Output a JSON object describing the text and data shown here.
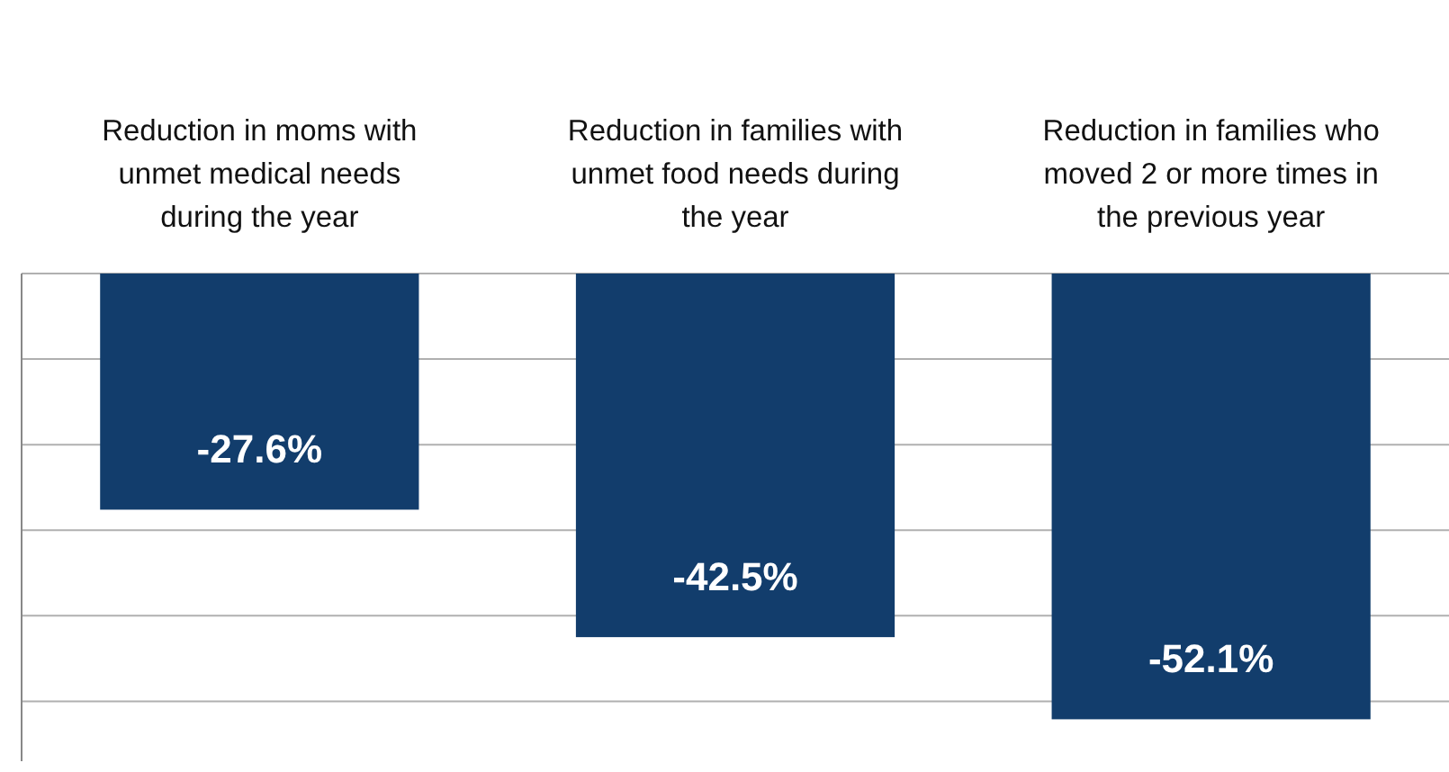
{
  "chart_data": {
    "type": "bar",
    "categories": [
      "Reduction in moms with unmet medical needs during the year",
      "Reduction in families with unmet food needs during the year",
      "Reduction in families who moved 2 or more times in the previous year"
    ],
    "values": [
      -27.6,
      -42.5,
      -52.1
    ],
    "value_labels": [
      "-27.6%",
      "-42.5%",
      "-52.1%"
    ],
    "color": "#123d6c",
    "ylim": [
      -57,
      0
    ],
    "yticks": [
      {
        "value": 0,
        "label": null
      },
      {
        "value": -10,
        "label": null
      },
      {
        "value": -20,
        "label": null
      },
      {
        "value": -30,
        "label": null
      },
      {
        "value": -40,
        "label": null
      },
      {
        "value": -50,
        "label": null
      }
    ],
    "grid": "y",
    "tick_labels": "x"
  }
}
